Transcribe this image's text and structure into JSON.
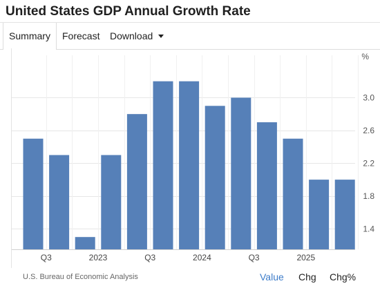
{
  "header": {
    "title": "United States GDP Annual Growth Rate"
  },
  "tabs": [
    {
      "label": "Summary",
      "active": true
    },
    {
      "label": "Forecast"
    },
    {
      "label": "Download"
    }
  ],
  "footer": {
    "source": "U.S. Bureau of Economic Analysis",
    "buttons": [
      "Value",
      "Chg",
      "Chg%"
    ],
    "active_button": "Value"
  },
  "colors": {
    "bar": "#5680b8",
    "active_link": "#3d7cc9"
  },
  "chart_data": {
    "type": "bar",
    "unit_label": "%",
    "categories": [
      "",
      "Q3",
      "",
      "2023",
      "",
      "Q3",
      "",
      "2024",
      "",
      "Q3",
      "",
      "2025",
      ""
    ],
    "values": [
      2.5,
      2.3,
      1.3,
      2.3,
      2.8,
      3.2,
      3.2,
      2.9,
      3.0,
      2.7,
      2.5,
      2.0,
      2.0
    ],
    "yticks": [
      1.4,
      1.8,
      2.2,
      2.6,
      3.0
    ],
    "ytick_labels": [
      "1.4",
      "1.8",
      "2.2",
      "2.6",
      "3.0"
    ],
    "ylim": [
      1.15,
      3.45
    ],
    "y_axis_side": "right",
    "grid": true
  }
}
